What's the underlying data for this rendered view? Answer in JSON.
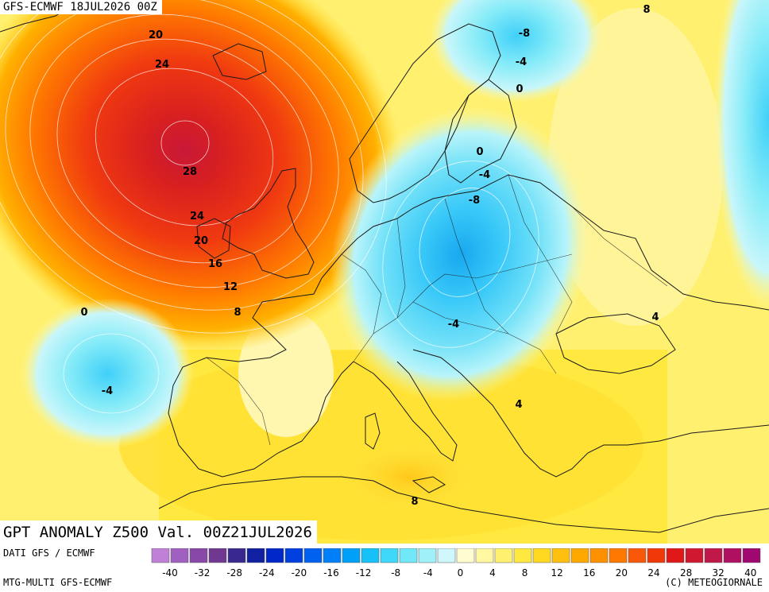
{
  "header": {
    "model_run": "GFS-ECMWF 18JUL2026 00Z"
  },
  "title": {
    "text": "GPT ANOMALY Z500 Val. 00Z21JUL2026"
  },
  "footer": {
    "data_source": "DATI GFS / ECMWF",
    "product": "MTG-MULTI GFS-ECMWF",
    "copyright": "(C) METEOGIORNALE"
  },
  "legend": {
    "colors": [
      "#c080d8",
      "#a060c0",
      "#8848a8",
      "#703890",
      "#382890",
      "#1020a0",
      "#0028c8",
      "#0040e0",
      "#0060f0",
      "#0080f8",
      "#00a0f8",
      "#18c0f8",
      "#40d8f8",
      "#70e8f8",
      "#a0f0f8",
      "#d0f8fc",
      "#fffcd0",
      "#fff8a0",
      "#fff070",
      "#ffe840",
      "#ffd820",
      "#ffc010",
      "#ffa800",
      "#ff9000",
      "#ff7800",
      "#f85808",
      "#f03808",
      "#e01818",
      "#d01830",
      "#c01848",
      "#b01060",
      "#a00870"
    ],
    "ticks": [
      "-40",
      "-32",
      "-28",
      "-24",
      "-20",
      "-16",
      "-12",
      "-8",
      "-4",
      "0",
      "4",
      "8",
      "12",
      "16",
      "20",
      "24",
      "28",
      "32",
      "40"
    ]
  },
  "map": {
    "contour_labels": [
      "20",
      "24",
      "28",
      "24",
      "20",
      "16",
      "12",
      "8",
      "0",
      "-4",
      "-8",
      "-4",
      "0",
      "8",
      "0",
      "-4",
      "-8",
      "-4",
      "4",
      "4",
      "8"
    ]
  }
}
